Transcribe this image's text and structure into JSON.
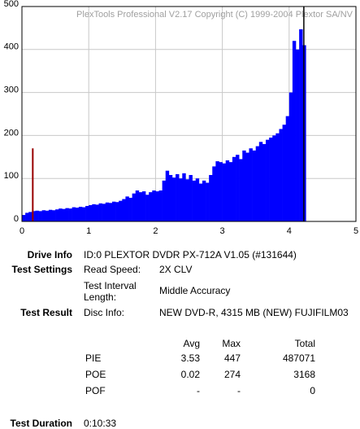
{
  "chart_data": {
    "type": "bar",
    "watermark": "PlexTools Professional V2.17 Copyright (C) 1999-2004 Plextor SA/NV",
    "xlim": [
      0,
      5
    ],
    "xticks": [
      0,
      1,
      2,
      3,
      4,
      5
    ],
    "ylim": [
      0,
      500
    ],
    "yticks": [
      0,
      100,
      200,
      300,
      400,
      500
    ],
    "grid": true,
    "series": [
      {
        "color": "#0000ff",
        "x": [
          0,
          0.05,
          0.1,
          0.15,
          0.2,
          0.25,
          0.3,
          0.35,
          0.4,
          0.45,
          0.5,
          0.55,
          0.6,
          0.65,
          0.7,
          0.75,
          0.8,
          0.85,
          0.9,
          0.95,
          1,
          1.05,
          1.1,
          1.15,
          1.2,
          1.25,
          1.3,
          1.35,
          1.4,
          1.45,
          1.5,
          1.55,
          1.6,
          1.65,
          1.7,
          1.75,
          1.8,
          1.85,
          1.9,
          1.95,
          2,
          2.05,
          2.1,
          2.15,
          2.2,
          2.25,
          2.3,
          2.35,
          2.4,
          2.45,
          2.5,
          2.55,
          2.6,
          2.65,
          2.7,
          2.75,
          2.8,
          2.85,
          2.9,
          2.95,
          3,
          3.05,
          3.1,
          3.15,
          3.2,
          3.25,
          3.3,
          3.35,
          3.4,
          3.45,
          3.5,
          3.55,
          3.6,
          3.65,
          3.7,
          3.75,
          3.8,
          3.85,
          3.9,
          3.95,
          4,
          4.05,
          4.1,
          4.15,
          4.2
        ],
        "values": [
          15,
          20,
          22,
          24,
          25,
          24,
          26,
          25,
          27,
          26,
          28,
          30,
          29,
          31,
          30,
          33,
          32,
          34,
          33,
          36,
          38,
          40,
          39,
          42,
          41,
          44,
          43,
          46,
          45,
          48,
          52,
          58,
          55,
          65,
          72,
          68,
          70,
          62,
          68,
          72,
          70,
          72,
          95,
          118,
          108,
          102,
          110,
          100,
          112,
          98,
          108,
          95,
          100,
          88,
          95,
          90,
          108,
          128,
          140,
          138,
          135,
          142,
          138,
          150,
          155,
          145,
          165,
          160,
          170,
          165,
          175,
          185,
          180,
          190,
          195,
          200,
          205,
          215,
          225,
          245,
          300,
          420,
          400,
          447,
          410
        ]
      },
      {
        "color": "#990000",
        "x": [
          0.15
        ],
        "values": [
          170
        ]
      }
    ],
    "vline": {
      "x": 4.22,
      "color": "#000000"
    }
  },
  "info": {
    "drive_info": {
      "label": "Drive Info",
      "value": "ID:0 PLEXTOR DVDR PX-712A V1.05 (#131644)"
    },
    "test_settings": {
      "label": "Test Settings",
      "read_speed_label": "Read Speed:",
      "read_speed": "2X CLV",
      "interval_label_1": "Test Interval",
      "interval_label_2": "Length:",
      "interval": "Middle Accuracy"
    },
    "test_result": {
      "label": "Test Result",
      "disc_label": "Disc Info:",
      "disc": "NEW DVD-R, 4315 MB (NEW) FUJIFILM03"
    },
    "stats": {
      "headers": [
        "Avg",
        "Max",
        "Total"
      ],
      "rows": [
        [
          "PIE",
          3.53,
          447,
          487071
        ],
        [
          "POE",
          0.02,
          274,
          3168
        ],
        [
          "POF",
          "-",
          "-",
          0
        ]
      ]
    },
    "duration": {
      "label": "Test Duration",
      "value": "0:10:33"
    }
  }
}
